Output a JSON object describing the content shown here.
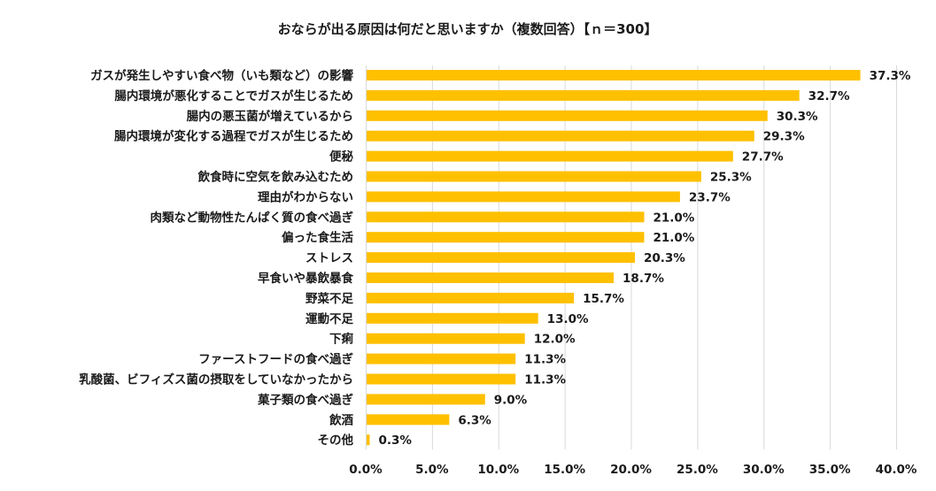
{
  "chart_data": {
    "type": "bar",
    "orientation": "horizontal",
    "title": "おならが出る原因は何だと思いますか（複数回答）【ｎ＝300】",
    "categories": [
      "ガスが発生しやすい食べ物（いも類など）の影響",
      "腸内環境が悪化することでガスが生じるため",
      "腸内の悪玉菌が増えているから",
      "腸内環境が変化する過程でガスが生じるため",
      "便秘",
      "飲食時に空気を飲み込むため",
      "理由がわからない",
      "肉類など動物性たんぱく質の食べ過ぎ",
      "偏った食生活",
      "ストレス",
      "早食いや暴飲暴食",
      "野菜不足",
      "運動不足",
      "下痢",
      "ファーストフードの食べ過ぎ",
      "乳酸菌、ビフィズス菌の摂取をしていなかったから",
      "菓子類の食べ過ぎ",
      "飲酒",
      "その他"
    ],
    "values": [
      37.3,
      32.7,
      30.3,
      29.3,
      27.7,
      25.3,
      23.7,
      21.0,
      21.0,
      20.3,
      18.7,
      15.7,
      13.0,
      12.0,
      11.3,
      11.3,
      9.0,
      6.3,
      0.3
    ],
    "value_labels": [
      "37.3%",
      "32.7%",
      "30.3%",
      "29.3%",
      "27.7%",
      "25.3%",
      "23.7%",
      "21.0%",
      "21.0%",
      "20.3%",
      "18.7%",
      "15.7%",
      "13.0%",
      "12.0%",
      "11.3%",
      "11.3%",
      "9.0%",
      "6.3%",
      "0.3%"
    ],
    "xlim": [
      0,
      40
    ],
    "xticks": [
      0,
      5,
      10,
      15,
      20,
      25,
      30,
      35,
      40
    ],
    "xtick_labels": [
      "0.0%",
      "5.0%",
      "10.0%",
      "15.0%",
      "20.0%",
      "25.0%",
      "30.0%",
      "35.0%",
      "40.0%"
    ],
    "xlabel": "",
    "ylabel": "",
    "grid": true,
    "legend": "none",
    "bar_color": "#FFC000",
    "grid_color": "#D9D9D9"
  }
}
